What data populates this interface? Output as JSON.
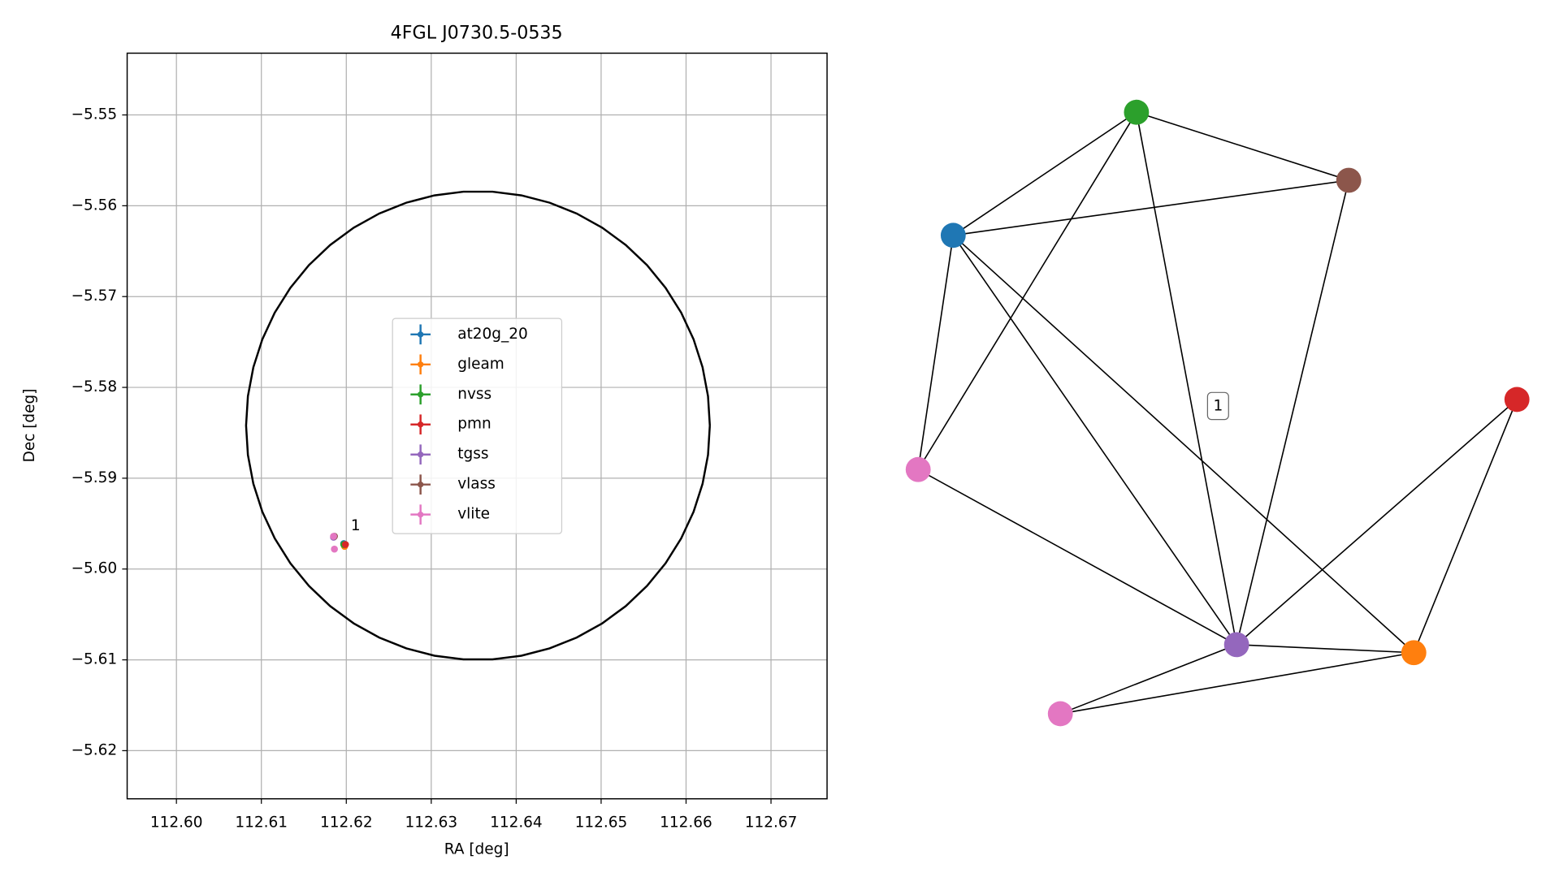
{
  "chart_data": [
    {
      "type": "scatter",
      "title": "4FGL J0730.5-0535",
      "x_label": "RA [deg]",
      "y_label": "Dec [deg]",
      "xlim": [
        112.5942,
        112.6766
      ],
      "ylim": [
        -5.6253,
        -5.5432
      ],
      "xticks": [
        {
          "value": 112.6,
          "label": "112.60"
        },
        {
          "value": 112.61,
          "label": "112.61"
        },
        {
          "value": 112.62,
          "label": "112.62"
        },
        {
          "value": 112.63,
          "label": "112.63"
        },
        {
          "value": 112.64,
          "label": "112.64"
        },
        {
          "value": 112.65,
          "label": "112.65"
        },
        {
          "value": 112.66,
          "label": "112.66"
        },
        {
          "value": 112.67,
          "label": "112.67"
        }
      ],
      "yticks": [
        {
          "value": -5.55,
          "label": "−5.55"
        },
        {
          "value": -5.56,
          "label": "−5.56"
        },
        {
          "value": -5.57,
          "label": "−5.57"
        },
        {
          "value": -5.58,
          "label": "−5.58"
        },
        {
          "value": -5.59,
          "label": "−5.59"
        },
        {
          "value": -5.6,
          "label": "−5.60"
        },
        {
          "value": -5.61,
          "label": "−5.61"
        },
        {
          "value": -5.62,
          "label": "−5.62"
        }
      ],
      "grid": true,
      "legend": "center",
      "error_ellipse": {
        "center": [
          112.6355,
          -5.5842
        ],
        "radius_x": 0.0273,
        "radius_y": 0.0258,
        "color": "#000000"
      },
      "series": [
        {
          "name": "at20g_20",
          "color": "#1f77b4",
          "x": [
            112.6197
          ],
          "y": [
            -5.5972
          ]
        },
        {
          "name": "gleam",
          "color": "#ff7f0e",
          "x": [
            112.6198
          ],
          "y": [
            -5.5975
          ]
        },
        {
          "name": "nvss",
          "color": "#2ca02c",
          "x": [
            112.6197
          ],
          "y": [
            -5.5973
          ]
        },
        {
          "name": "pmn",
          "color": "#d62728",
          "x": [
            112.6199
          ],
          "y": [
            -5.5973
          ]
        },
        {
          "name": "tgss",
          "color": "#9467bd",
          "x": [
            112.6185
          ],
          "y": [
            -5.5965
          ]
        },
        {
          "name": "vlass",
          "color": "#8c564b",
          "x": [
            112.6186
          ],
          "y": [
            -5.5964
          ]
        },
        {
          "name": "vlite",
          "color": "#e377c2",
          "x": [
            112.6185,
            112.6186
          ],
          "y": [
            -5.5964,
            -5.5978
          ]
        }
      ],
      "annotations": [
        {
          "text": "1",
          "x": 112.6203,
          "y": -5.5953
        }
      ]
    },
    {
      "type": "graph",
      "label": "1",
      "nodes": [
        {
          "color": "#1f77b4"
        },
        {
          "color": "#2ca02c"
        },
        {
          "color": "#8c564b"
        },
        {
          "color": "#e377c2"
        },
        {
          "color": "#9467bd"
        },
        {
          "color": "#ff7f0e"
        },
        {
          "color": "#e377c2"
        },
        {
          "color": "#d62728"
        }
      ],
      "edges": [
        [
          0,
          1
        ],
        [
          0,
          2
        ],
        [
          1,
          2
        ],
        [
          1,
          3
        ],
        [
          1,
          4
        ],
        [
          2,
          4
        ],
        [
          0,
          3
        ],
        [
          0,
          4
        ],
        [
          0,
          5
        ],
        [
          3,
          4
        ],
        [
          4,
          5
        ],
        [
          4,
          7
        ],
        [
          7,
          5
        ],
        [
          6,
          4
        ],
        [
          6,
          5
        ]
      ]
    }
  ]
}
